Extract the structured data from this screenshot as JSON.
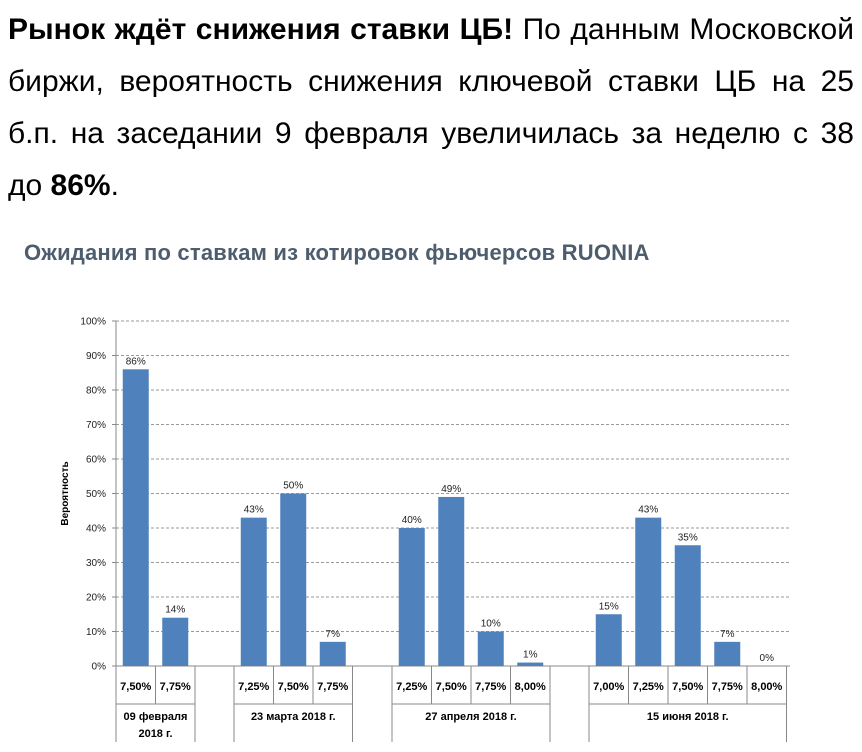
{
  "intro": {
    "headline": "Рынок ждёт снижения ставки ЦБ!",
    "text1": " По данным Московской биржи, вероятность снижения ключевой ставки ЦБ на 25 б.п. на заседании 9 февраля увеличилась за неделю с 38 до ",
    "highlight": "86%",
    "text2": "."
  },
  "chart_data": {
    "type": "bar",
    "title": "Ожидания по ставкам из котировок фьючерсов RUONIA",
    "ylabel": "Вероятность",
    "ylim": [
      0,
      100
    ],
    "yticks": [
      "0%",
      "10%",
      "20%",
      "30%",
      "40%",
      "50%",
      "60%",
      "70%",
      "80%",
      "90%",
      "100%"
    ],
    "grid": "horizontal dashed",
    "bar_color": "#4f81bd",
    "groups": [
      {
        "name": "09 февраля 2018 г.",
        "name_lines": [
          "09 февраля",
          "2018 г."
        ],
        "categories": [
          "7,50%",
          "7,75%"
        ],
        "values": [
          86,
          14
        ],
        "labels": [
          "86%",
          "14%"
        ]
      },
      {
        "name": "23 марта 2018 г.",
        "name_lines": [
          "23 марта 2018 г."
        ],
        "categories": [
          "7,25%",
          "7,50%",
          "7,75%"
        ],
        "values": [
          43,
          50,
          7
        ],
        "labels": [
          "43%",
          "50%",
          "7%"
        ]
      },
      {
        "name": "27 апреля 2018 г.",
        "name_lines": [
          "27 апреля 2018 г."
        ],
        "categories": [
          "7,25%",
          "7,50%",
          "7,75%",
          "8,00%"
        ],
        "values": [
          40,
          49,
          10,
          1
        ],
        "labels": [
          "40%",
          "49%",
          "10%",
          "1%"
        ]
      },
      {
        "name": "15 июня 2018 г.",
        "name_lines": [
          "15 июня 2018 г."
        ],
        "categories": [
          "7,00%",
          "7,25%",
          "7,50%",
          "7,75%",
          "8,00%"
        ],
        "values": [
          15,
          43,
          35,
          7,
          0
        ],
        "labels": [
          "15%",
          "43%",
          "35%",
          "7%",
          "0%"
        ]
      }
    ]
  }
}
